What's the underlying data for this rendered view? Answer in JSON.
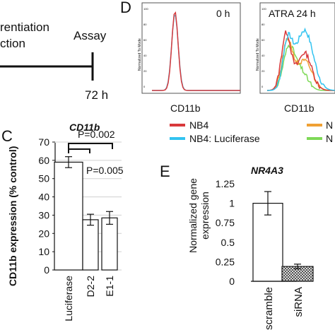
{
  "panel_labels": {
    "c": "C",
    "d": "D",
    "e": "E"
  },
  "timeline": {
    "left_text_1": "rentiation",
    "left_text_2": "ction",
    "assay_label": "Assay",
    "time_label": "72 h"
  },
  "legend": {
    "items": [
      {
        "label": "NB4",
        "color": "#d9393b"
      },
      {
        "label": "NB4: Luciferase",
        "color": "#32c3f0"
      },
      {
        "label": "N",
        "color": "#f0a033"
      },
      {
        "label": "N",
        "color": "#7ed957"
      }
    ]
  },
  "chart_data": [
    {
      "type": "histogram",
      "panel": "D",
      "title": "0 h",
      "xlabel": "CD11b",
      "ylabel": "Normalized To Mode",
      "y_ticks": [
        "100",
        "80",
        "60",
        "40",
        "20",
        "0"
      ],
      "series": [
        {
          "name": "NB4",
          "color": "#d9393b",
          "peak_center": 0.26,
          "peak_height": 0.95
        },
        {
          "name": "NB4: Luciferase",
          "color": "#32c3f0",
          "peak_center": 0.26,
          "peak_height": 0.92
        }
      ]
    },
    {
      "type": "histogram",
      "panel": "D",
      "title": "ATRA 24 h",
      "xlabel": "CD11b",
      "ylabel": "Normalized To Mode",
      "y_ticks": [
        "100",
        "80",
        "60",
        "40",
        "20",
        "0"
      ],
      "series": [
        {
          "name": "NB4",
          "color": "#d9393b"
        },
        {
          "name": "NB4: Luciferase",
          "color": "#32c3f0"
        },
        {
          "color": "#f0a033"
        },
        {
          "color": "#7ed957"
        }
      ]
    },
    {
      "type": "bar",
      "panel": "C",
      "title": "CD11b",
      "ylabel": "CD11b expression (% control)",
      "categories": [
        "Luciferase",
        "D2-2",
        "E1-1"
      ],
      "values": [
        59,
        27.5,
        28.5
      ],
      "errors": [
        3,
        3,
        3.5
      ],
      "ylim": [
        0,
        70
      ],
      "y_ticks": [
        0,
        10,
        20,
        30,
        40,
        50,
        60,
        70
      ],
      "grid": true,
      "annotations": [
        "P=0.002",
        "P=0.005"
      ]
    },
    {
      "type": "bar",
      "panel": "E",
      "title": "NR4A3",
      "ylabel": "Normalized gene expression",
      "categories": [
        "scramble",
        "siRNA"
      ],
      "values": [
        1.0,
        0.19
      ],
      "errors": [
        0.15,
        0.03
      ],
      "ylim": [
        0,
        1.25
      ],
      "y_ticks": [
        0,
        0.25,
        0.5,
        0.75,
        1,
        1.25
      ],
      "fills": [
        "#ffffff",
        "hatched"
      ],
      "grid": false
    }
  ]
}
